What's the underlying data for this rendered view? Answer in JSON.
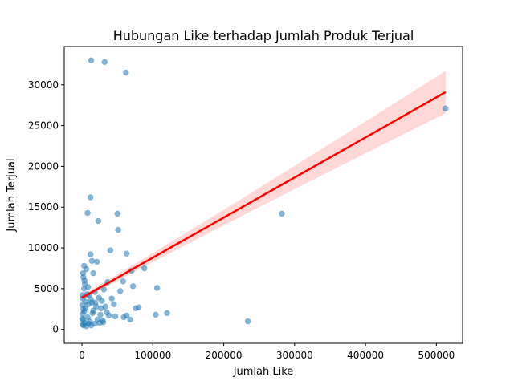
{
  "chart_data": {
    "type": "scatter",
    "title": "Hubungan Like terhadap Jumlah Produk Terjual",
    "xlabel": "Jumlah Like",
    "ylabel": "Jumlah Terjual",
    "xlim": [
      -25000,
      537000
    ],
    "ylim": [
      -1700,
      34700
    ],
    "xticks": [
      0,
      100000,
      200000,
      300000,
      400000,
      500000
    ],
    "xtick_labels": [
      "0",
      "100000",
      "200000",
      "300000",
      "400000",
      "500000"
    ],
    "yticks": [
      0,
      5000,
      10000,
      15000,
      20000,
      25000,
      30000
    ],
    "ytick_labels": [
      "0",
      "5000",
      "10000",
      "15000",
      "20000",
      "25000",
      "30000"
    ],
    "grid": false,
    "scatter_color": "#1f77b4",
    "regression_color": "#ff0000",
    "band_color": "#ff9999",
    "regression": {
      "x": [
        0,
        513000
      ],
      "y": [
        3900,
        29100
      ],
      "ci_upper_end": 31800,
      "ci_lower_end": 26600
    },
    "points": [
      [
        13000,
        33000
      ],
      [
        32000,
        32800
      ],
      [
        62000,
        31500
      ],
      [
        513000,
        27100
      ],
      [
        12000,
        16200
      ],
      [
        8000,
        14300
      ],
      [
        50000,
        14200
      ],
      [
        282000,
        14200
      ],
      [
        23000,
        13300
      ],
      [
        51000,
        12200
      ],
      [
        40000,
        9700
      ],
      [
        12000,
        9200
      ],
      [
        63000,
        9300
      ],
      [
        14000,
        8400
      ],
      [
        21000,
        8300
      ],
      [
        3000,
        7800
      ],
      [
        88000,
        7500
      ],
      [
        70000,
        7200
      ],
      [
        16000,
        6900
      ],
      [
        6000,
        7400
      ],
      [
        2000,
        6400
      ],
      [
        58000,
        5900
      ],
      [
        36000,
        5800
      ],
      [
        72000,
        5300
      ],
      [
        106000,
        5100
      ],
      [
        4000,
        5600
      ],
      [
        31000,
        4900
      ],
      [
        54000,
        4700
      ],
      [
        18000,
        4600
      ],
      [
        10000,
        4200
      ],
      [
        42000,
        3800
      ],
      [
        24000,
        3900
      ],
      [
        28000,
        3500
      ],
      [
        14000,
        3300
      ],
      [
        9000,
        3100
      ],
      [
        20000,
        2800
      ],
      [
        5000,
        2600
      ],
      [
        3000,
        2200
      ],
      [
        15000,
        2000
      ],
      [
        26000,
        1800
      ],
      [
        8000,
        1500
      ],
      [
        2000,
        1200
      ],
      [
        11000,
        1000
      ],
      [
        4000,
        800
      ],
      [
        1000,
        600
      ],
      [
        2000,
        500
      ],
      [
        6000,
        400
      ],
      [
        3000,
        5000
      ],
      [
        7000,
        4300
      ],
      [
        1000,
        3800
      ],
      [
        500,
        3000
      ],
      [
        2000,
        2500
      ],
      [
        900,
        1900
      ],
      [
        13000,
        500
      ],
      [
        18000,
        700
      ],
      [
        22000,
        1200
      ],
      [
        30000,
        900
      ],
      [
        45000,
        3100
      ],
      [
        38000,
        1700
      ],
      [
        16000,
        2300
      ],
      [
        1500,
        6900
      ],
      [
        3500,
        6000
      ],
      [
        8500,
        5200
      ],
      [
        12500,
        3700
      ],
      [
        19000,
        3300
      ],
      [
        27000,
        2600
      ],
      [
        35000,
        2100
      ],
      [
        400,
        1300
      ],
      [
        700,
        4200
      ],
      [
        5500,
        3400
      ],
      [
        9500,
        700
      ],
      [
        33000,
        2800
      ],
      [
        80000,
        2700
      ],
      [
        76000,
        2600
      ],
      [
        63000,
        1700
      ],
      [
        59000,
        1500
      ],
      [
        68000,
        1200
      ],
      [
        104000,
        1800
      ],
      [
        120000,
        2000
      ],
      [
        234000,
        1000
      ],
      [
        25000,
        800
      ],
      [
        29000,
        1100
      ],
      [
        47000,
        1600
      ]
    ]
  }
}
